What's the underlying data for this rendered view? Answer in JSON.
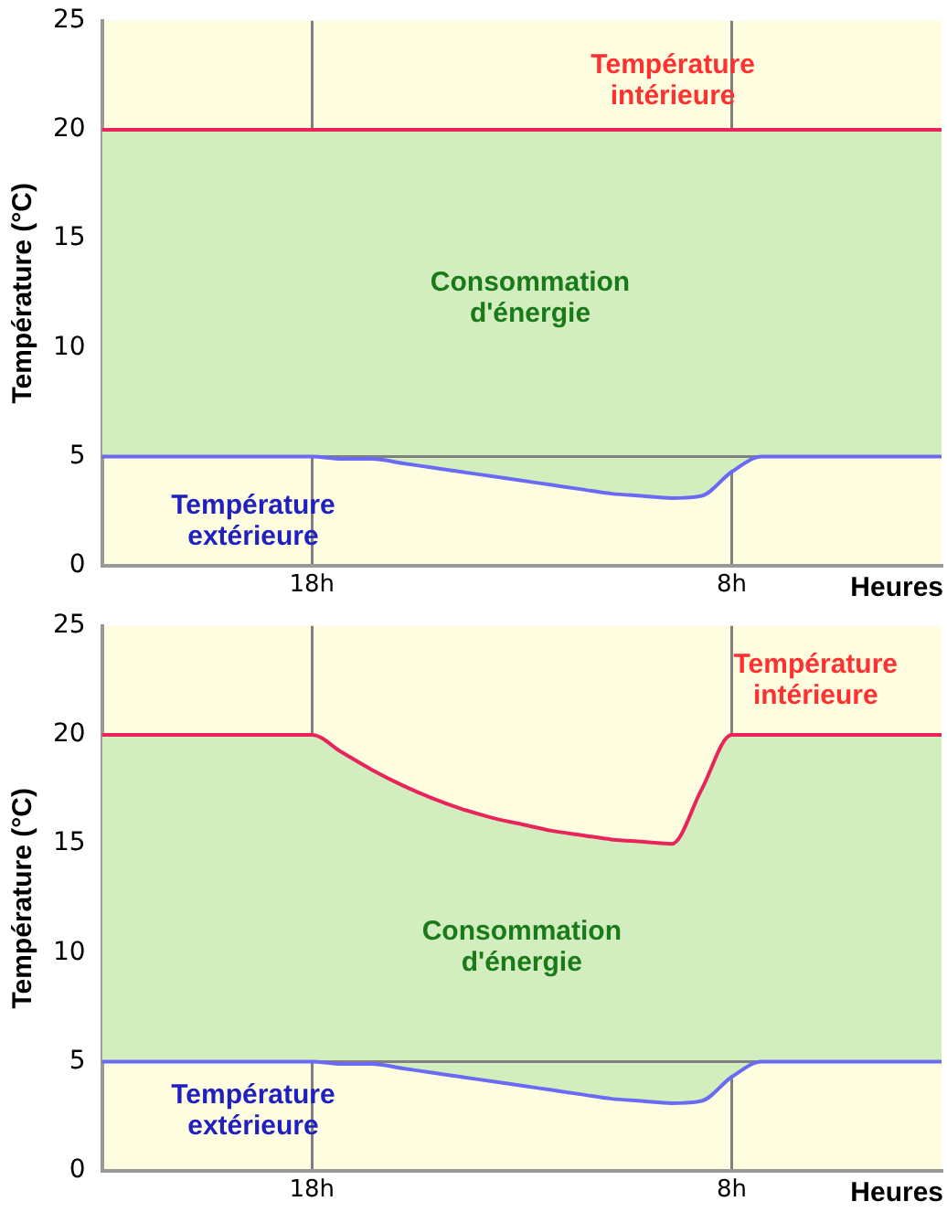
{
  "chart_data": [
    {
      "type": "line",
      "ylabel": "Température (°C)",
      "xlabel": "Heures",
      "ylim": [
        0,
        25
      ],
      "yticks": [
        0,
        5,
        10,
        15,
        20,
        25
      ],
      "grid": "x",
      "categories": [
        null,
        null,
        null,
        null,
        null,
        null,
        null,
        "18h",
        null,
        null,
        null,
        null,
        null,
        null,
        null,
        null,
        null,
        null,
        null,
        null,
        null,
        "8h",
        null,
        null,
        null,
        null,
        null,
        null,
        null
      ],
      "series": [
        {
          "type": "area",
          "color": "#d2eebe",
          "values": [
            20,
            20,
            20,
            20,
            20,
            20,
            20,
            20,
            20,
            20,
            20,
            20,
            20,
            20,
            20,
            20,
            20,
            20,
            20,
            20,
            20,
            20,
            20,
            20,
            20,
            20,
            20,
            20,
            20
          ]
        },
        {
          "color": "#e8245a",
          "values": [
            20,
            20,
            20,
            20,
            20,
            20,
            20,
            20,
            20,
            20,
            20,
            20,
            20,
            20,
            20,
            20,
            20,
            20,
            20,
            20,
            20,
            20,
            20,
            20,
            20,
            20,
            20,
            20,
            20
          ]
        },
        {
          "color": "#6a6af5",
          "values": [
            5,
            5,
            5,
            5,
            5,
            5,
            5,
            5,
            4.9,
            4.9,
            4.7,
            4.5,
            4.3,
            4.1,
            3.9,
            3.7,
            3.5,
            3.3,
            3.2,
            3.1,
            3.2,
            4.3,
            5,
            5,
            5,
            5,
            5,
            5,
            5
          ]
        }
      ],
      "ref_lines": [
        {
          "axis": "y",
          "value": 5,
          "color": "#808080"
        }
      ],
      "annotations": [
        "Température intérieure",
        "Température extérieure",
        "Consommation d'énergie"
      ]
    },
    {
      "type": "line",
      "ylabel": "Température (°C)",
      "xlabel": "Heures",
      "ylim": [
        0,
        25
      ],
      "yticks": [
        0,
        5,
        10,
        15,
        20,
        25
      ],
      "grid": "x",
      "categories": [
        null,
        null,
        null,
        null,
        null,
        null,
        null,
        "18h",
        null,
        null,
        null,
        null,
        null,
        null,
        null,
        null,
        null,
        null,
        null,
        null,
        null,
        "8h",
        null,
        null,
        null,
        null,
        null,
        null,
        null
      ],
      "series": [
        {
          "type": "area",
          "color": "#d2eebe",
          "values": [
            20,
            20,
            20,
            20,
            20,
            20,
            20,
            20,
            19.2,
            18.4,
            17.7,
            17.1,
            16.6,
            16.2,
            15.9,
            15.6,
            15.4,
            15.2,
            15.1,
            15,
            17.5,
            20,
            20,
            20,
            20,
            20,
            20,
            20,
            20
          ]
        },
        {
          "color": "#e8245a",
          "values": [
            20,
            20,
            20,
            20,
            20,
            20,
            20,
            20,
            19.2,
            18.4,
            17.7,
            17.1,
            16.6,
            16.2,
            15.9,
            15.6,
            15.4,
            15.2,
            15.1,
            15,
            17.5,
            20,
            20,
            20,
            20,
            20,
            20,
            20,
            20
          ]
        },
        {
          "color": "#6a6af5",
          "values": [
            5,
            5,
            5,
            5,
            5,
            5,
            5,
            5,
            4.9,
            4.9,
            4.7,
            4.5,
            4.3,
            4.1,
            3.9,
            3.7,
            3.5,
            3.3,
            3.2,
            3.1,
            3.2,
            4.3,
            5,
            5,
            5,
            5,
            5,
            5,
            5
          ]
        }
      ],
      "ref_lines": [
        {
          "axis": "y",
          "value": 5,
          "color": "#808080"
        }
      ],
      "annotations": [
        "Température intérieure",
        "Température extérieure",
        "Consommation d'énergie"
      ]
    }
  ]
}
